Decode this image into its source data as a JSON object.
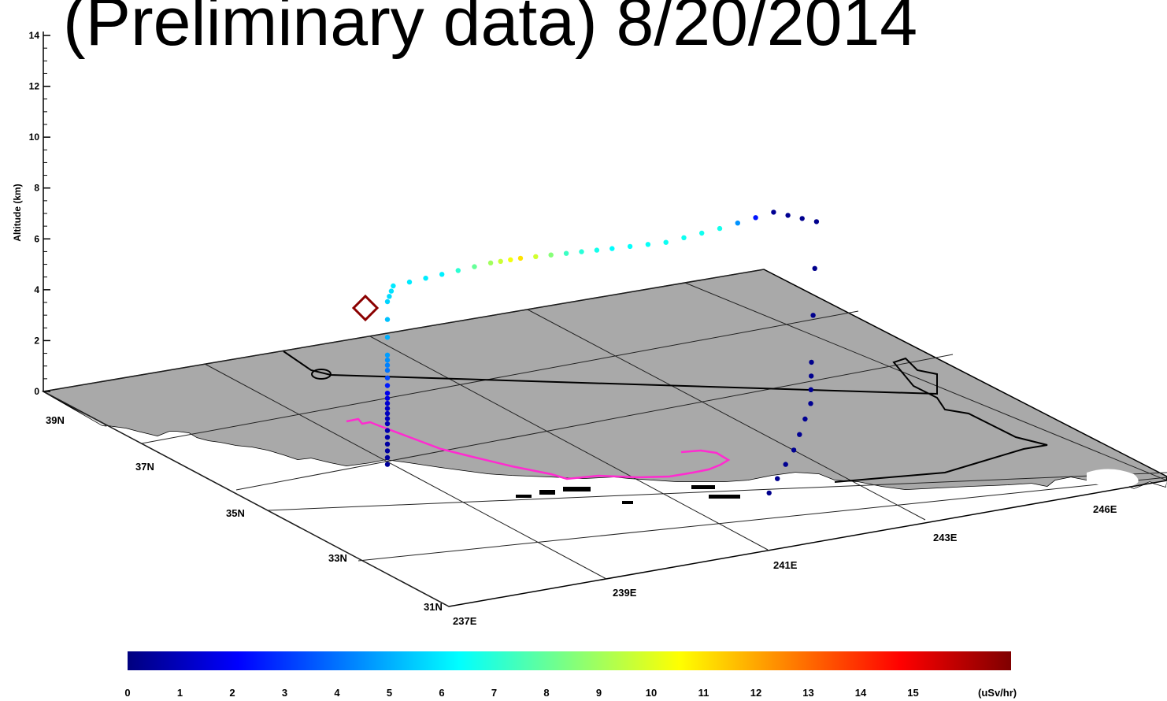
{
  "title": "(Preliminary data) 8/20/2014",
  "chart_data": {
    "type": "scatter",
    "title": "(Preliminary data) 8/20/2014",
    "ylabel": "Altitude (km)",
    "zlim": [
      0,
      14
    ],
    "z_ticks": [
      "0",
      "2",
      "4",
      "6",
      "8",
      "10",
      "12",
      "14"
    ],
    "lat_ticks": [
      "31N",
      "33N",
      "35N",
      "37N",
      "39N"
    ],
    "lon_ticks": [
      "237E",
      "239E",
      "241E",
      "243E",
      "246E"
    ],
    "colorbar": {
      "unit": "(uSv/hr)",
      "range": [
        0,
        15
      ],
      "ticks": [
        "0",
        "1",
        "2",
        "3",
        "4",
        "5",
        "6",
        "7",
        "8",
        "9",
        "10",
        "11",
        "12",
        "13",
        "14",
        "15"
      ],
      "colors": [
        "#00007f",
        "#0000ff",
        "#007fff",
        "#00ffff",
        "#7fff7f",
        "#ffff00",
        "#ff7f00",
        "#ff0000",
        "#7f0000"
      ]
    },
    "series": [
      {
        "values": [
          {
            "lon": 237.5,
            "lat": 33.0,
            "alt": 3.2,
            "dose": 0.4
          },
          {
            "lon": 237.5,
            "lat": 33.0,
            "alt": 4.0,
            "dose": 0.5
          },
          {
            "lon": 237.5,
            "lat": 33.0,
            "alt": 4.8,
            "dose": 0.8
          },
          {
            "lon": 237.5,
            "lat": 33.0,
            "alt": 5.4,
            "dose": 1.0
          },
          {
            "lon": 237.5,
            "lat": 33.0,
            "alt": 6.0,
            "dose": 1.6
          },
          {
            "lon": 237.5,
            "lat": 33.0,
            "alt": 6.9,
            "dose": 3.6
          },
          {
            "lon": 237.5,
            "lat": 33.0,
            "alt": 7.5,
            "dose": 4.2
          },
          {
            "lon": 237.5,
            "lat": 33.0,
            "alt": 9.6,
            "dose": 5.0
          },
          {
            "lon": 237.7,
            "lat": 33.2,
            "alt": 9.9,
            "dose": 5.3
          },
          {
            "lon": 238.5,
            "lat": 33.5,
            "alt": 9.6,
            "dose": 5.4
          },
          {
            "lon": 239.3,
            "lat": 33.8,
            "alt": 9.3,
            "dose": 8.0
          },
          {
            "lon": 239.8,
            "lat": 34.0,
            "alt": 9.0,
            "dose": 9.8
          },
          {
            "lon": 240.5,
            "lat": 34.2,
            "alt": 8.6,
            "dose": 6.5
          },
          {
            "lon": 241.2,
            "lat": 34.4,
            "alt": 8.2,
            "dose": 5.6
          },
          {
            "lon": 242.0,
            "lat": 34.6,
            "alt": 7.8,
            "dose": 5.8
          },
          {
            "lon": 242.8,
            "lat": 34.8,
            "alt": 7.7,
            "dose": 5.9
          },
          {
            "lon": 243.6,
            "lat": 35.0,
            "alt": 7.7,
            "dose": 0.3
          },
          {
            "lon": 244.2,
            "lat": 35.1,
            "alt": 6.9,
            "dose": 0.2
          },
          {
            "lon": 243.0,
            "lat": 33.3,
            "alt": 3.9,
            "dose": 0.2
          },
          {
            "lon": 242.8,
            "lat": 33.0,
            "alt": 2.7,
            "dose": 0.3
          },
          {
            "lon": 242.4,
            "lat": 32.7,
            "alt": 1.4,
            "dose": 0.3
          },
          {
            "lon": 241.9,
            "lat": 32.4,
            "alt": 0.3,
            "dose": 0.2
          }
        ]
      }
    ]
  }
}
